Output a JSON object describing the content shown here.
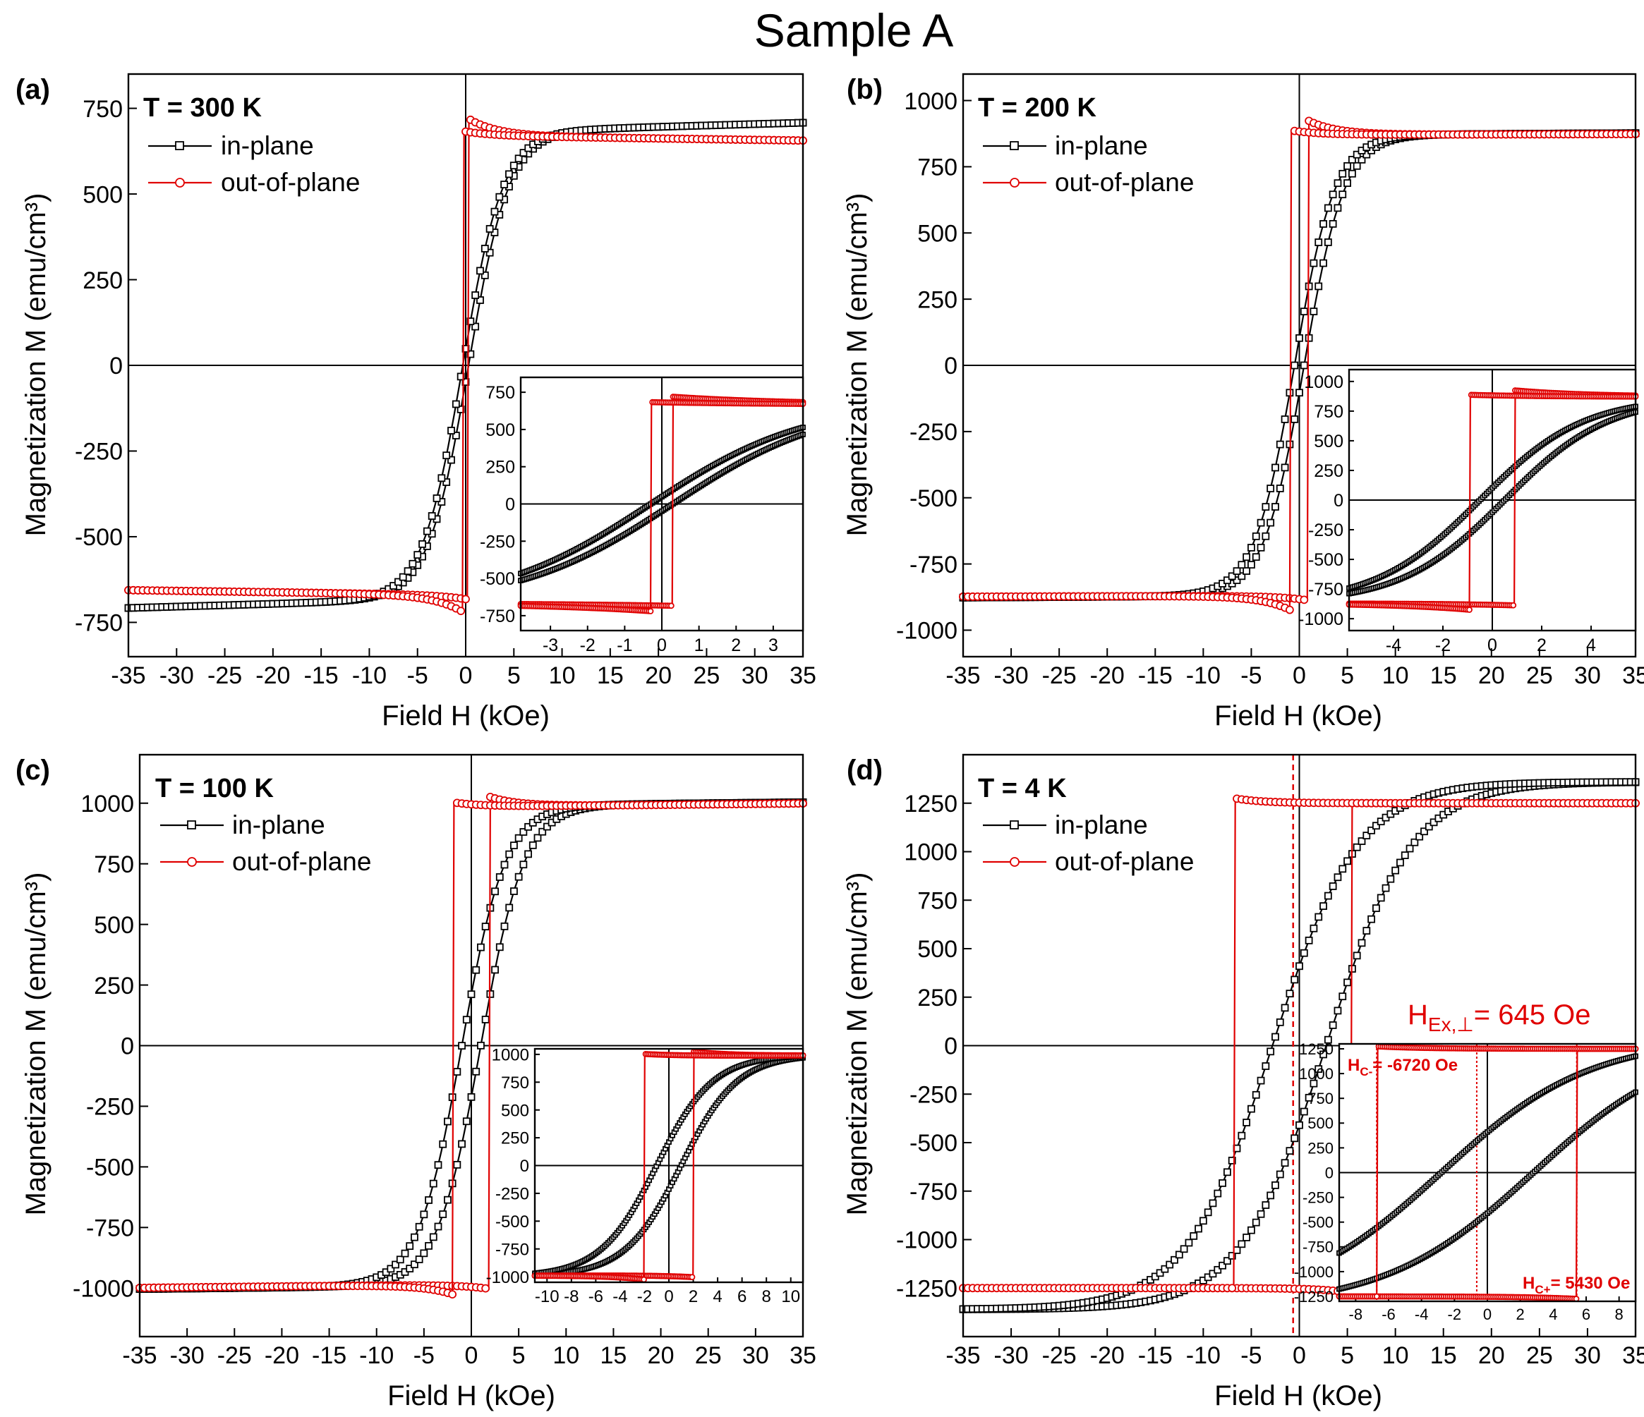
{
  "figure_title": "Sample A",
  "colors": {
    "in_plane": "#000000",
    "out_of_plane": "#e00000"
  },
  "chart_data": [
    {
      "id": "a",
      "type": "line",
      "panel_label": "(a)",
      "temperature": "T = 300 K",
      "xlabel": "Field H (kOe)",
      "ylabel": "Magnetization M (emu/cm³)",
      "xlim": [
        -35,
        35
      ],
      "ylim": [
        -850,
        850
      ],
      "xticks": [
        -35,
        -30,
        -25,
        -20,
        -15,
        -10,
        -5,
        0,
        5,
        10,
        15,
        20,
        25,
        30,
        35
      ],
      "yticks": [
        -750,
        -500,
        -250,
        0,
        250,
        500,
        750
      ],
      "legend": [
        "in-plane",
        "out-of-plane"
      ],
      "series": [
        {
          "name": "in-plane",
          "loop": "tanh",
          "Ms": 680,
          "Hc": 0.3,
          "w": 4.2,
          "slope": 0.8
        },
        {
          "name": "out-of-plane",
          "loop": "square",
          "Ms": 670,
          "Hc": 0.3,
          "overshoot": 50,
          "slope": -0.4
        }
      ],
      "inset": {
        "xlim": [
          -3.8,
          3.8
        ],
        "ylim": [
          -850,
          850
        ],
        "xticks": [
          -3,
          -2,
          -1,
          0,
          1,
          2,
          3
        ],
        "yticks": [
          -750,
          -500,
          -250,
          0,
          250,
          500,
          750
        ]
      }
    },
    {
      "id": "b",
      "type": "line",
      "panel_label": "(b)",
      "temperature": "T = 200 K",
      "xlabel": "Field H (kOe)",
      "ylabel": "Magnetization M (emu/cm³)",
      "xlim": [
        -35,
        35
      ],
      "ylim": [
        -1100,
        1100
      ],
      "xticks": [
        -35,
        -30,
        -25,
        -20,
        -15,
        -10,
        -5,
        0,
        5,
        10,
        15,
        20,
        25,
        30,
        35
      ],
      "yticks": [
        -1000,
        -750,
        -500,
        -250,
        0,
        250,
        500,
        750,
        1000
      ],
      "legend": [
        "in-plane",
        "out-of-plane"
      ],
      "series": [
        {
          "name": "in-plane",
          "loop": "tanh",
          "Ms": 870,
          "Hc": 0.5,
          "w": 4.2,
          "slope": 0.2
        },
        {
          "name": "out-of-plane",
          "loop": "square",
          "Ms": 870,
          "Hc": 0.9,
          "overshoot": 55,
          "slope": 0.1
        }
      ],
      "inset": {
        "xlim": [
          -5.8,
          5.8
        ],
        "ylim": [
          -1100,
          1100
        ],
        "xticks": [
          -4,
          -2,
          0,
          2,
          4
        ],
        "yticks": [
          -1000,
          -750,
          -500,
          -250,
          0,
          250,
          500,
          750,
          1000
        ]
      }
    },
    {
      "id": "c",
      "type": "line",
      "panel_label": "(c)",
      "temperature": "T = 100 K",
      "xlabel": "Field H (kOe)",
      "ylabel": "Magnetization M (emu/cm³)",
      "xlim": [
        -35,
        35
      ],
      "ylim": [
        -1200,
        1200
      ],
      "xticks": [
        -35,
        -30,
        -25,
        -20,
        -15,
        -10,
        -5,
        0,
        5,
        10,
        15,
        20,
        25,
        30,
        35
      ],
      "yticks": [
        -1000,
        -750,
        -500,
        -250,
        0,
        250,
        500,
        750,
        1000
      ],
      "legend": [
        "in-plane",
        "out-of-plane"
      ],
      "series": [
        {
          "name": "in-plane",
          "loop": "tanh",
          "Ms": 990,
          "Hc": 1.0,
          "w": 4.6,
          "slope": 0.4
        },
        {
          "name": "out-of-plane",
          "loop": "square",
          "Ms": 985,
          "Hc": 2.0,
          "overshoot": 40,
          "slope": 0.4
        }
      ],
      "inset": {
        "xlim": [
          -11,
          11
        ],
        "ylim": [
          -1050,
          1050
        ],
        "xticks": [
          -10,
          -8,
          -6,
          -4,
          -2,
          0,
          2,
          4,
          6,
          8,
          10
        ],
        "yticks": [
          -1000,
          -750,
          -500,
          -250,
          0,
          250,
          500,
          750,
          1000
        ]
      }
    },
    {
      "id": "d",
      "type": "line",
      "panel_label": "(d)",
      "temperature": "T = 4 K",
      "xlabel": "Field H (kOe)",
      "ylabel": "Magnetization M (emu/cm³)",
      "xlim": [
        -35,
        35
      ],
      "ylim": [
        -1500,
        1500
      ],
      "xticks": [
        -35,
        -30,
        -25,
        -20,
        -15,
        -10,
        -5,
        0,
        5,
        10,
        15,
        20,
        25,
        30,
        35
      ],
      "yticks": [
        -1250,
        -1000,
        -750,
        -500,
        -250,
        0,
        250,
        500,
        750,
        1000,
        1250
      ],
      "legend": [
        "in-plane",
        "out-of-plane"
      ],
      "series": [
        {
          "name": "in-plane",
          "loop": "tanh",
          "Ms": 1360,
          "Hc": 2.8,
          "w": 9.0,
          "slope": 0
        },
        {
          "name": "out-of-plane",
          "loop": "square",
          "Ms": 1250,
          "Hc_minus": -6.72,
          "Hc_plus": 5.43,
          "slope": 0
        }
      ],
      "exchange_bias_field_kOe": -0.645,
      "annotation": "H",
      "annotation_sub": "Ex,⊥",
      "annotation_value": "= 645 Oe",
      "inset": {
        "xlim": [
          -9,
          9
        ],
        "ylim": [
          -1300,
          1300
        ],
        "xticks": [
          -8,
          -6,
          -4,
          -2,
          0,
          2,
          4,
          6,
          8
        ],
        "yticks": [
          -1250,
          -1000,
          -750,
          -500,
          -250,
          0,
          250,
          500,
          750,
          1000,
          1250
        ],
        "hc_minus_label": "H",
        "hc_minus_sub": "C-",
        "hc_minus_value": "= -6720 Oe",
        "hc_plus_label": "H",
        "hc_plus_sub": "C+",
        "hc_plus_value": "= 5430 Oe"
      }
    }
  ]
}
